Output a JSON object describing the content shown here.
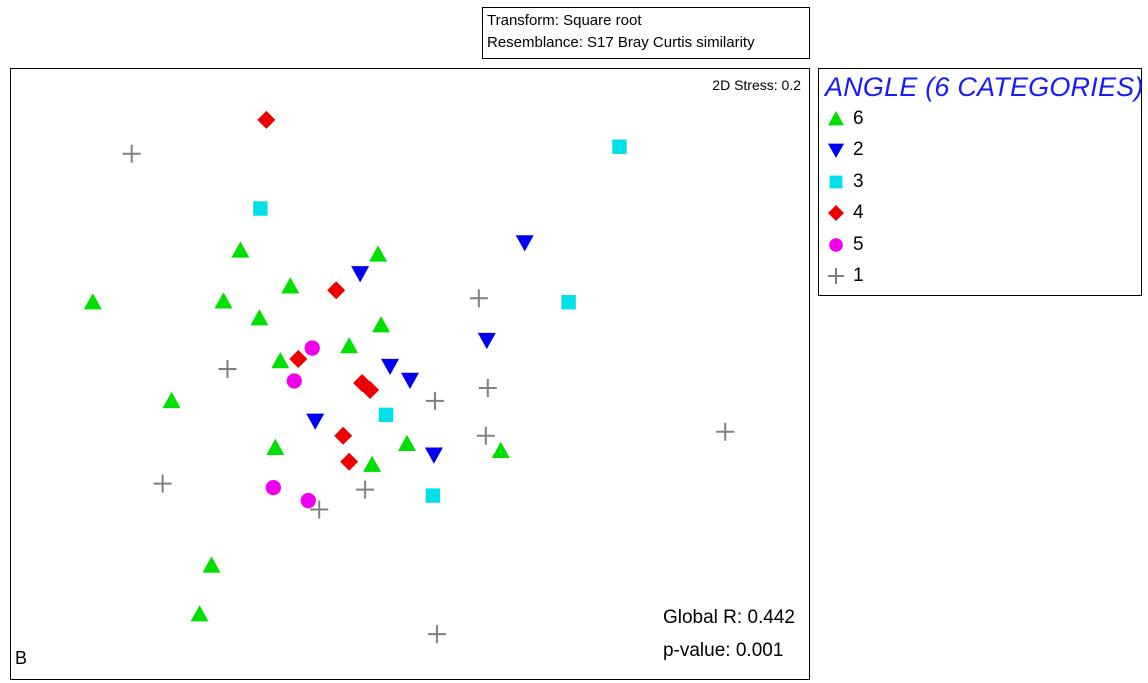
{
  "header": {
    "transform": "Transform: Square root",
    "resemblance": "Resemblance: S17 Bray Curtis similarity"
  },
  "plot": {
    "stress": "2D Stress: 0.2",
    "panel_letter": "B",
    "global_r": "Global R: 0.442",
    "p_value": "p-value: 0.001"
  },
  "legend": {
    "title": "ANGLE (6 CATEGORIES)",
    "items": [
      {
        "label": "6",
        "shape": "triangle-up",
        "color": "#00e000"
      },
      {
        "label": "2",
        "shape": "triangle-down",
        "color": "#0000ee"
      },
      {
        "label": "3",
        "shape": "square",
        "color": "#00e0e8"
      },
      {
        "label": "4",
        "shape": "diamond",
        "color": "#ee0000"
      },
      {
        "label": "5",
        "shape": "circle",
        "color": "#ee00ee"
      },
      {
        "label": "1",
        "shape": "plus",
        "color": "#808080"
      }
    ]
  },
  "chart_data": {
    "type": "scatter",
    "title": "",
    "xlabel": "",
    "ylabel": "",
    "axes_visible": false,
    "grid": false,
    "legend_position": "right",
    "xlim": [
      0,
      800
    ],
    "ylim": [
      0,
      612
    ],
    "series": [
      {
        "name": "6",
        "shape": "triangle-up",
        "color": "#00e000",
        "points": [
          [
            82,
            234
          ],
          [
            230,
            182
          ],
          [
            213,
            233
          ],
          [
            280,
            218
          ],
          [
            249,
            250
          ],
          [
            368,
            186
          ],
          [
            371,
            257
          ],
          [
            270,
            293
          ],
          [
            339,
            278
          ],
          [
            161,
            333
          ],
          [
            265,
            380
          ],
          [
            397,
            376
          ],
          [
            491,
            383
          ],
          [
            362,
            397
          ],
          [
            201,
            498
          ],
          [
            189,
            547
          ]
        ]
      },
      {
        "name": "2",
        "shape": "triangle-down",
        "color": "#0000ee",
        "points": [
          [
            515,
            174
          ],
          [
            350,
            205
          ],
          [
            477,
            272
          ],
          [
            380,
            298
          ],
          [
            400,
            312
          ],
          [
            305,
            353
          ],
          [
            424,
            387
          ]
        ]
      },
      {
        "name": "3",
        "shape": "square",
        "color": "#00e0e8",
        "points": [
          [
            610,
            78
          ],
          [
            250,
            140
          ],
          [
            559,
            234
          ],
          [
            376,
            347
          ],
          [
            423,
            428
          ]
        ]
      },
      {
        "name": "4",
        "shape": "diamond",
        "color": "#ee0000",
        "points": [
          [
            256,
            51
          ],
          [
            326,
            222
          ],
          [
            288,
            291
          ],
          [
            352,
            315
          ],
          [
            360,
            322
          ],
          [
            333,
            368
          ],
          [
            339,
            394
          ]
        ]
      },
      {
        "name": "5",
        "shape": "circle",
        "color": "#ee00ee",
        "points": [
          [
            302,
            280
          ],
          [
            284,
            313
          ],
          [
            263,
            420
          ],
          [
            298,
            433
          ]
        ]
      },
      {
        "name": "1",
        "shape": "plus",
        "color": "#808080",
        "points": [
          [
            121,
            85
          ],
          [
            469,
            230
          ],
          [
            217,
            301
          ],
          [
            478,
            320
          ],
          [
            425,
            333
          ],
          [
            476,
            368
          ],
          [
            716,
            364
          ],
          [
            152,
            416
          ],
          [
            355,
            422
          ],
          [
            309,
            442
          ],
          [
            427,
            567
          ]
        ]
      }
    ]
  }
}
